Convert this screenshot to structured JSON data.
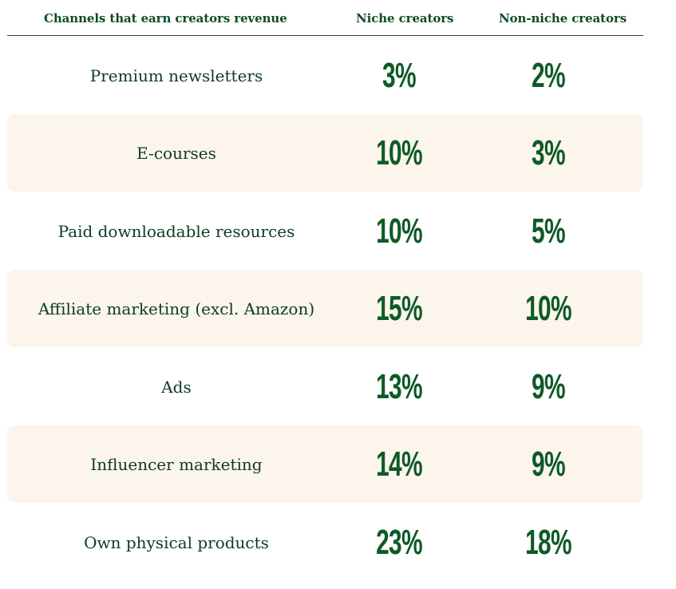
{
  "colors": {
    "text_dark_green": "#0d3b1f",
    "value_green": "#0f5a27",
    "stripe_bg": "#fcf5ec",
    "rule": "#1e4d2b"
  },
  "header": {
    "channel": "Channels that earn creators revenue",
    "niche": "Niche creators",
    "non_niche": "Non-niche creators"
  },
  "chart_data": {
    "type": "table",
    "columns": [
      "Channels that earn creators revenue",
      "Niche creators",
      "Non-niche creators"
    ],
    "rows": [
      {
        "label": "Premium newsletters",
        "niche": "3%",
        "non_niche": "2%"
      },
      {
        "label": "E-courses",
        "niche": "10%",
        "non_niche": "3%"
      },
      {
        "label": "Paid downloadable resources",
        "niche": "10%",
        "non_niche": "5%"
      },
      {
        "label": "Affiliate marketing (excl. Amazon)",
        "niche": "15%",
        "non_niche": "10%"
      },
      {
        "label": "Ads",
        "niche": "13%",
        "non_niche": "9%"
      },
      {
        "label": "Influencer marketing",
        "niche": "14%",
        "non_niche": "9%"
      },
      {
        "label": "Own physical products",
        "niche": "23%",
        "non_niche": "18%"
      }
    ]
  }
}
